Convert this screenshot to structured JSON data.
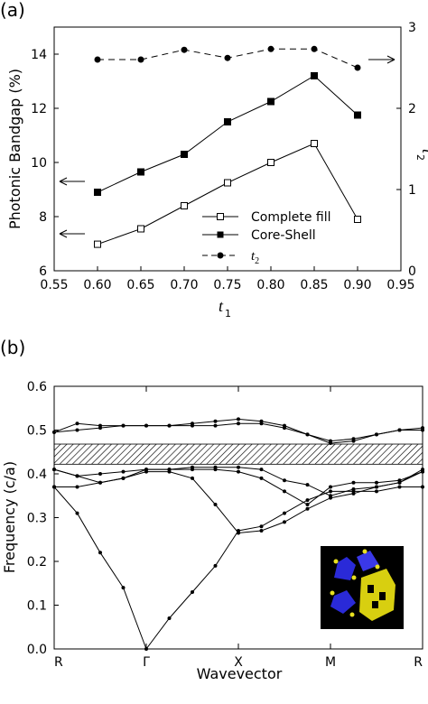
{
  "chart_data": [
    {
      "panel_label": "(a)",
      "type": "line",
      "xlabel": "t",
      "xlabel_sub": "1",
      "ylabel": "Photonic Bandgap (%)",
      "y2label": "t",
      "y2label_sub": "2",
      "xlim": [
        0.55,
        0.95
      ],
      "ylim": [
        6,
        15
      ],
      "y2lim": [
        0,
        3
      ],
      "xticks": [
        "0.55",
        "0.60",
        "0.65",
        "0.70",
        "0.75",
        "0.80",
        "0.85",
        "0.90",
        "0.95"
      ],
      "yticks": [
        "6",
        "8",
        "10",
        "12",
        "14"
      ],
      "y2ticks": [
        "0",
        "1",
        "2",
        "3"
      ],
      "legend_position": "bottom-right",
      "series": [
        {
          "name": "Complete fill",
          "axis": "left",
          "marker": "open-square",
          "line": "solid",
          "x": [
            0.6,
            0.65,
            0.7,
            0.75,
            0.8,
            0.85,
            0.9
          ],
          "y": [
            6.98,
            7.55,
            8.4,
            9.25,
            10.0,
            10.7,
            7.9
          ]
        },
        {
          "name": "Core-Shell",
          "axis": "left",
          "marker": "filled-square",
          "line": "solid",
          "x": [
            0.6,
            0.65,
            0.7,
            0.75,
            0.8,
            0.85,
            0.9
          ],
          "y": [
            8.9,
            9.65,
            10.3,
            11.5,
            12.25,
            13.2,
            11.75
          ]
        },
        {
          "name": "t2",
          "axis": "right",
          "marker": "filled-circle",
          "line": "dashed",
          "x": [
            0.6,
            0.65,
            0.7,
            0.75,
            0.8,
            0.85,
            0.9
          ],
          "y": [
            2.6,
            2.6,
            2.72,
            2.62,
            2.73,
            2.73,
            2.5
          ]
        }
      ]
    },
    {
      "panel_label": "(b)",
      "type": "line",
      "xlabel": "Wavevector",
      "ylabel": "Frequency (c/a)",
      "ylim": [
        0,
        0.6
      ],
      "yticks": [
        "0.0",
        "0.1",
        "0.2",
        "0.3",
        "0.4",
        "0.5",
        "0.6"
      ],
      "xticks": [
        "R",
        "Γ",
        "X",
        "M",
        "R"
      ],
      "bandgap": [
        0.422,
        0.468
      ],
      "series": [
        {
          "x": [
            0,
            0.25,
            0.5,
            0.75,
            1.0,
            1.25,
            1.5,
            1.75,
            2.0,
            2.25,
            2.5,
            2.75,
            3.0,
            3.25,
            3.5,
            3.75,
            4.0
          ],
          "y": [
            0.37,
            0.31,
            0.22,
            0.14,
            0.0,
            0.07,
            0.13,
            0.19,
            0.27,
            0.28,
            0.31,
            0.34,
            0.36,
            0.36,
            0.36,
            0.37,
            0.37
          ]
        },
        {
          "x": [
            0,
            0.25,
            0.5,
            0.75,
            1.0,
            1.25,
            1.5,
            1.75,
            2.0,
            2.25,
            2.5,
            2.75,
            3.0,
            3.25,
            3.5,
            3.75,
            4.0
          ],
          "y": [
            0.37,
            0.37,
            0.38,
            0.39,
            0.405,
            0.405,
            0.39,
            0.33,
            0.265,
            0.27,
            0.29,
            0.32,
            0.345,
            0.355,
            0.37,
            0.38,
            0.405
          ]
        },
        {
          "x": [
            0,
            0.25,
            0.5,
            0.75,
            1.0,
            1.25,
            1.5,
            1.75,
            2.0,
            2.25,
            2.5,
            2.75,
            3.0,
            3.25,
            3.5,
            3.75,
            4.0
          ],
          "y": [
            0.41,
            0.395,
            0.4,
            0.405,
            0.41,
            0.41,
            0.41,
            0.41,
            0.405,
            0.39,
            0.36,
            0.33,
            0.37,
            0.38,
            0.38,
            0.385,
            0.405
          ]
        },
        {
          "x": [
            0,
            0.25,
            0.5,
            0.75,
            1.0,
            1.25,
            1.5,
            1.75,
            2.0,
            2.25,
            2.5,
            2.75,
            3.0,
            3.25,
            3.5,
            3.75,
            4.0
          ],
          "y": [
            0.41,
            0.395,
            0.38,
            0.39,
            0.41,
            0.41,
            0.415,
            0.415,
            0.415,
            0.41,
            0.385,
            0.375,
            0.35,
            0.365,
            0.37,
            0.38,
            0.41
          ]
        },
        {
          "x": [
            0,
            0.25,
            0.5,
            0.75,
            1.0,
            1.25,
            1.5,
            1.75,
            2.0,
            2.25,
            2.5,
            2.75,
            3.0,
            3.25,
            3.5,
            3.75,
            4.0
          ],
          "y": [
            0.495,
            0.5,
            0.505,
            0.51,
            0.51,
            0.51,
            0.51,
            0.51,
            0.515,
            0.515,
            0.505,
            0.49,
            0.475,
            0.48,
            0.49,
            0.5,
            0.505
          ]
        },
        {
          "x": [
            0,
            0.25,
            0.5,
            0.75,
            1.0,
            1.25,
            1.5,
            1.75,
            2.0,
            2.25,
            2.5,
            2.75,
            3.0,
            3.25,
            3.5,
            3.75,
            4.0
          ],
          "y": [
            0.495,
            0.515,
            0.51,
            0.51,
            0.51,
            0.51,
            0.515,
            0.52,
            0.525,
            0.52,
            0.51,
            0.49,
            0.47,
            0.475,
            0.49,
            0.5,
            0.5
          ]
        }
      ]
    }
  ]
}
